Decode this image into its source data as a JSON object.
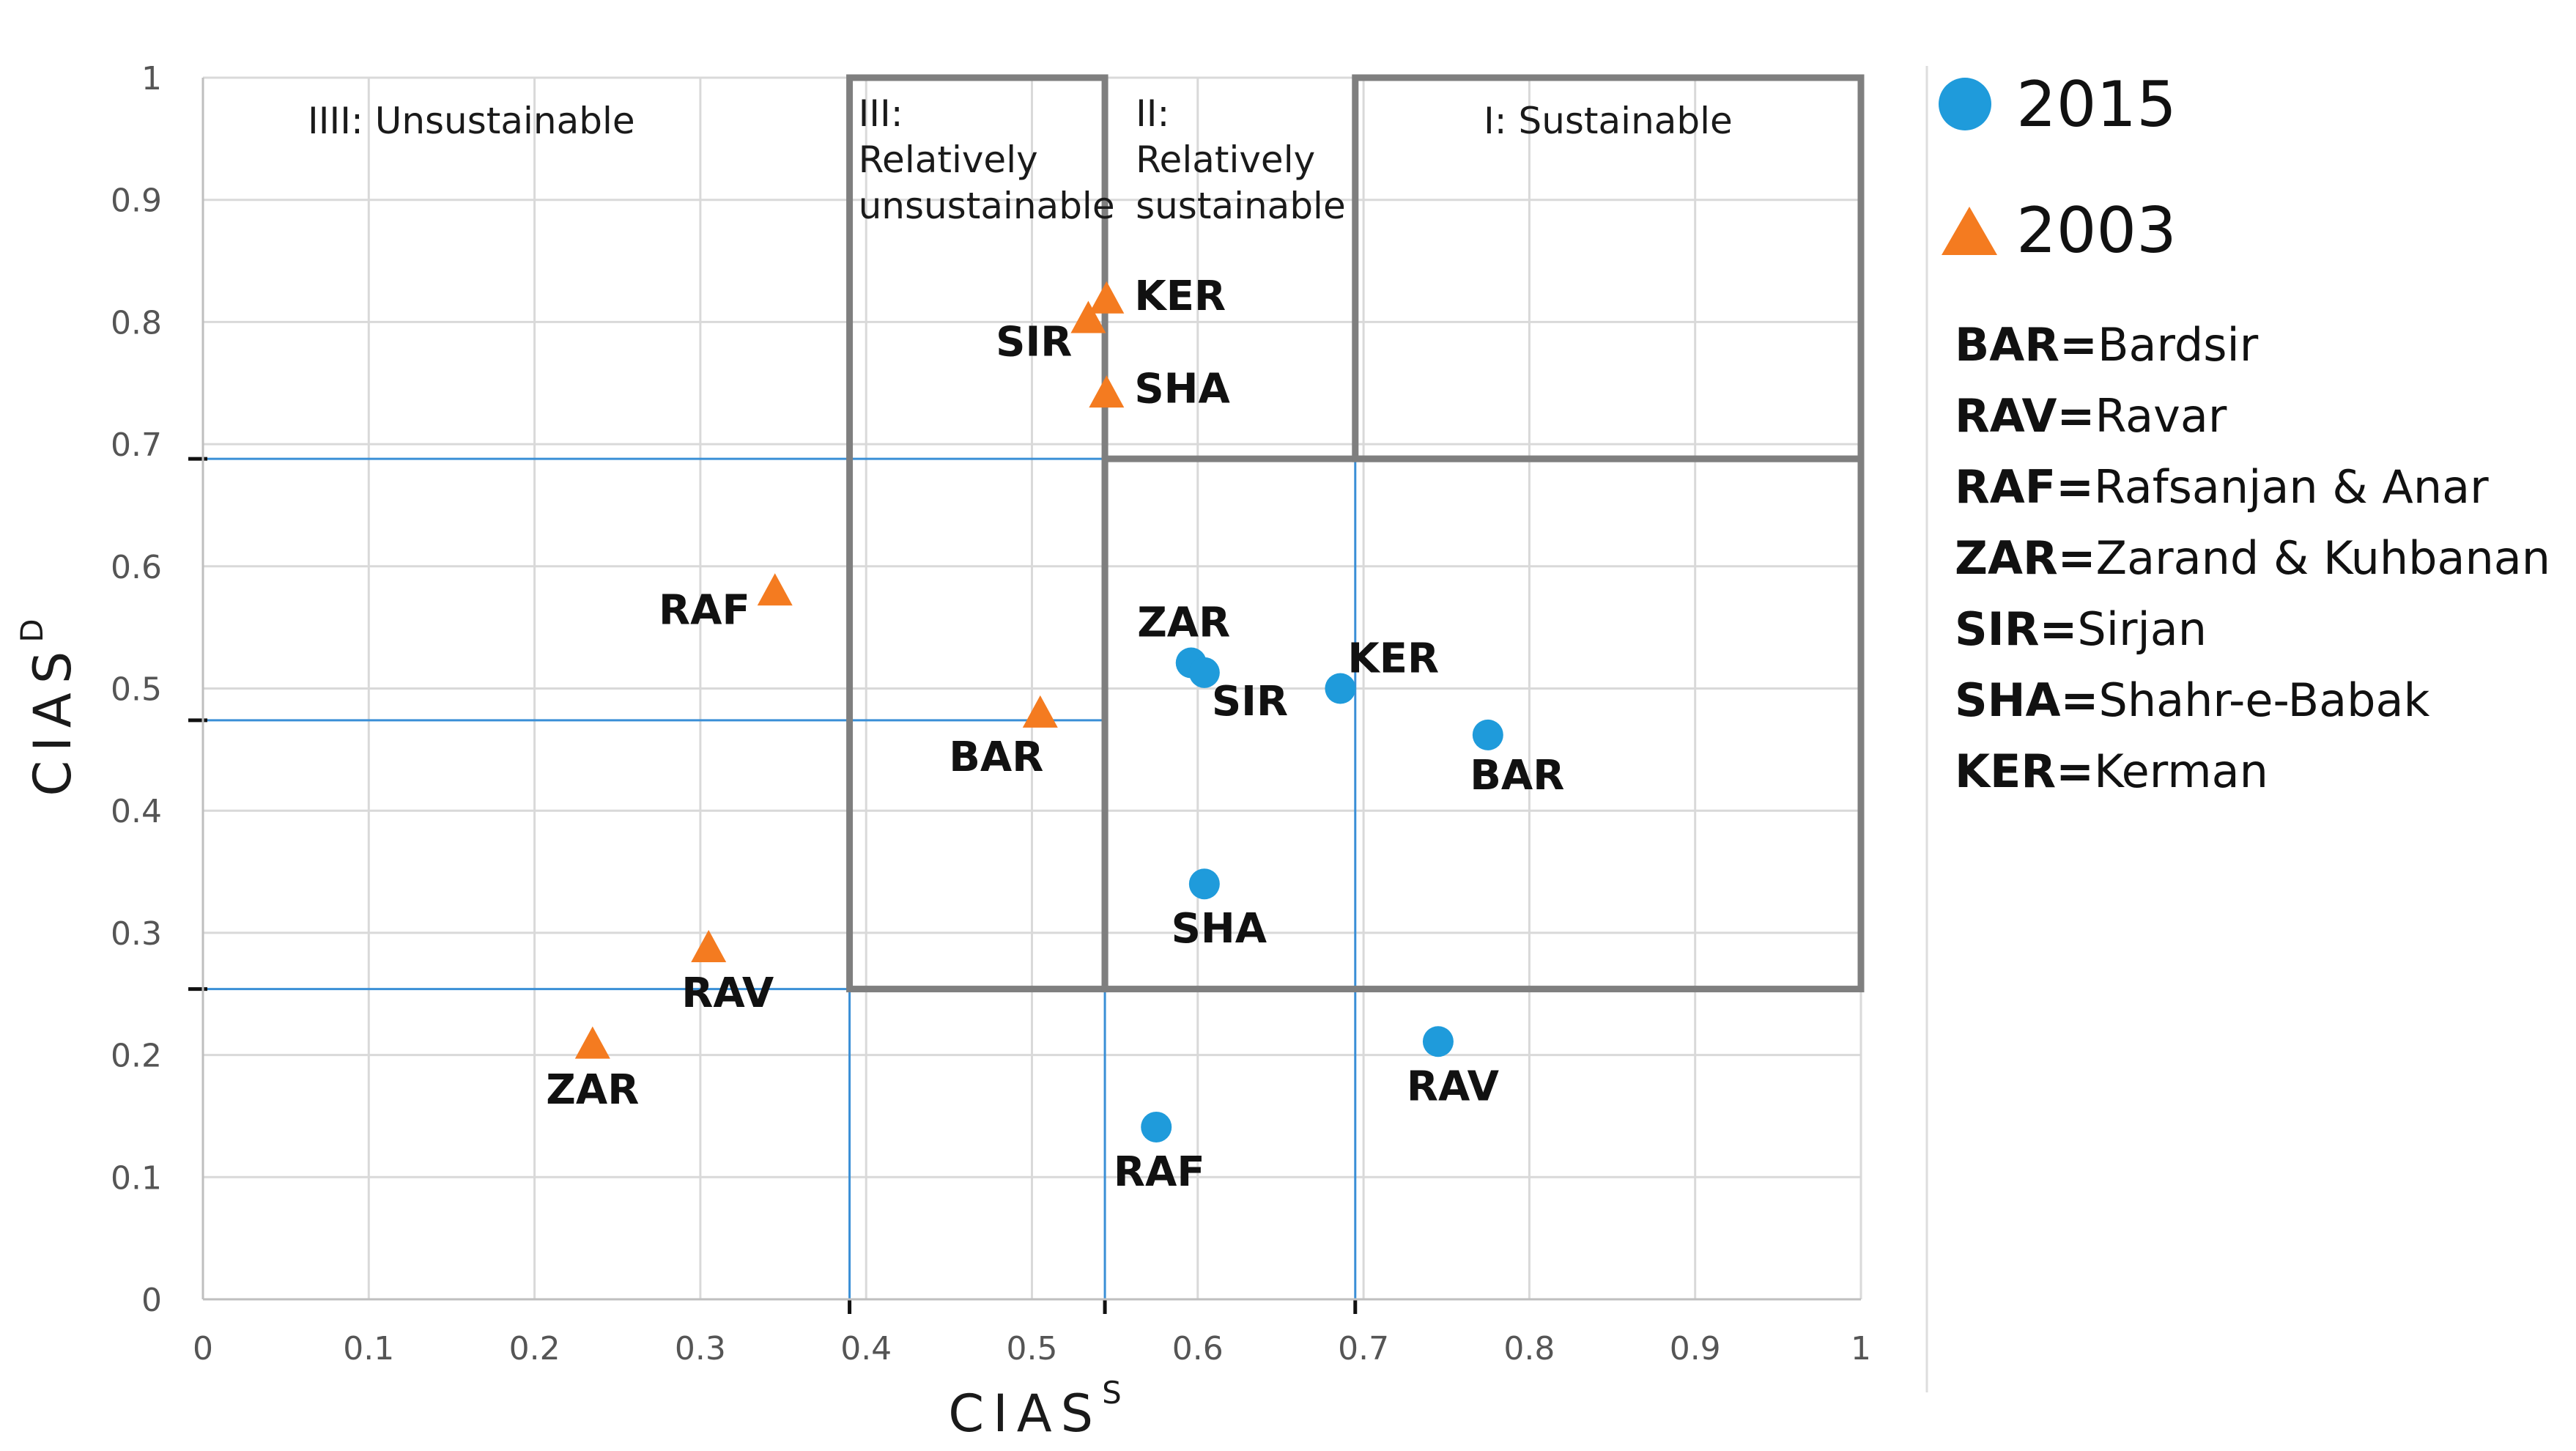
{
  "chart_data": {
    "type": "scatter",
    "xlabel": "CIAS",
    "xlabel_sup": "S",
    "ylabel": "CIAS",
    "ylabel_sup": "D",
    "xlim": [
      0,
      1
    ],
    "ylim": [
      0,
      1
    ],
    "x_ticks": [
      "0",
      "0.1",
      "0.2",
      "0.3",
      "0.4",
      "0.5",
      "0.6",
      "0.7",
      "0.8",
      "0.9",
      "1"
    ],
    "y_ticks": [
      "0",
      "0.1",
      "0.2",
      "0.3",
      "0.4",
      "0.5",
      "0.6",
      "0.7",
      "0.8",
      "0.9",
      "1"
    ],
    "thresholds": {
      "x": [
        0.39,
        0.544,
        0.695
      ],
      "y": [
        0.254,
        0.474,
        0.688
      ]
    },
    "regions": [
      {
        "label": "IIII: Unsustainable",
        "x0": 0,
        "x1": 0.39,
        "y0": 0,
        "y1": 1
      },
      {
        "label": "III: Relatively unsustainable",
        "lines": [
          "III:",
          "Relatively",
          "unsustainable"
        ],
        "x0": 0.39,
        "x1": 0.544,
        "y0": 0.254,
        "y1": 1
      },
      {
        "label": "II: Relatively sustainable",
        "lines": [
          "II:",
          "Relatively",
          "sustainable"
        ],
        "x0": 0.544,
        "x1": 1,
        "y0": 0.254,
        "y1": 0.688
      },
      {
        "label": "I: Sustainable",
        "x0": 0.695,
        "x1": 1,
        "y0": 0.688,
        "y1": 1
      }
    ],
    "series": [
      {
        "name": "2015",
        "marker": "circle",
        "color": "#1F9BDB",
        "points": [
          {
            "label": "ZAR",
            "x": 0.596,
            "y": 0.521
          },
          {
            "label": "SIR",
            "x": 0.604,
            "y": 0.513
          },
          {
            "label": "KER",
            "x": 0.686,
            "y": 0.5
          },
          {
            "label": "BAR",
            "x": 0.775,
            "y": 0.462
          },
          {
            "label": "SHA",
            "x": 0.604,
            "y": 0.34
          },
          {
            "label": "RAV",
            "x": 0.745,
            "y": 0.211
          },
          {
            "label": "RAF",
            "x": 0.575,
            "y": 0.141
          }
        ]
      },
      {
        "name": "2003",
        "marker": "triangle",
        "color": "#F47B20",
        "points": [
          {
            "label": "KER",
            "x": 0.545,
            "y": 0.817
          },
          {
            "label": "SIR",
            "x": 0.534,
            "y": 0.801
          },
          {
            "label": "SHA",
            "x": 0.545,
            "y": 0.74
          },
          {
            "label": "RAF",
            "x": 0.345,
            "y": 0.578
          },
          {
            "label": "BAR",
            "x": 0.505,
            "y": 0.478
          },
          {
            "label": "RAV",
            "x": 0.305,
            "y": 0.286
          },
          {
            "label": "ZAR",
            "x": 0.235,
            "y": 0.207
          }
        ]
      }
    ],
    "legend": {
      "entries": [
        "2015",
        "2003"
      ],
      "abbreviations": [
        {
          "code": "BAR",
          "name": "Bardsir"
        },
        {
          "code": "RAV",
          "name": "Ravar"
        },
        {
          "code": "RAF",
          "name": "Rafsanjan & Anar"
        },
        {
          "code": "ZAR",
          "name": "Zarand & Kuhbanan"
        },
        {
          "code": "SIR",
          "name": "Sirjan"
        },
        {
          "code": "SHA",
          "name": "Shahr-e-Babak"
        },
        {
          "code": "KER",
          "name": "Kerman"
        }
      ]
    },
    "colors": {
      "grid": "#D9D9D9",
      "threshold": "#3A8FD6",
      "box": "#7F7F7F"
    }
  }
}
